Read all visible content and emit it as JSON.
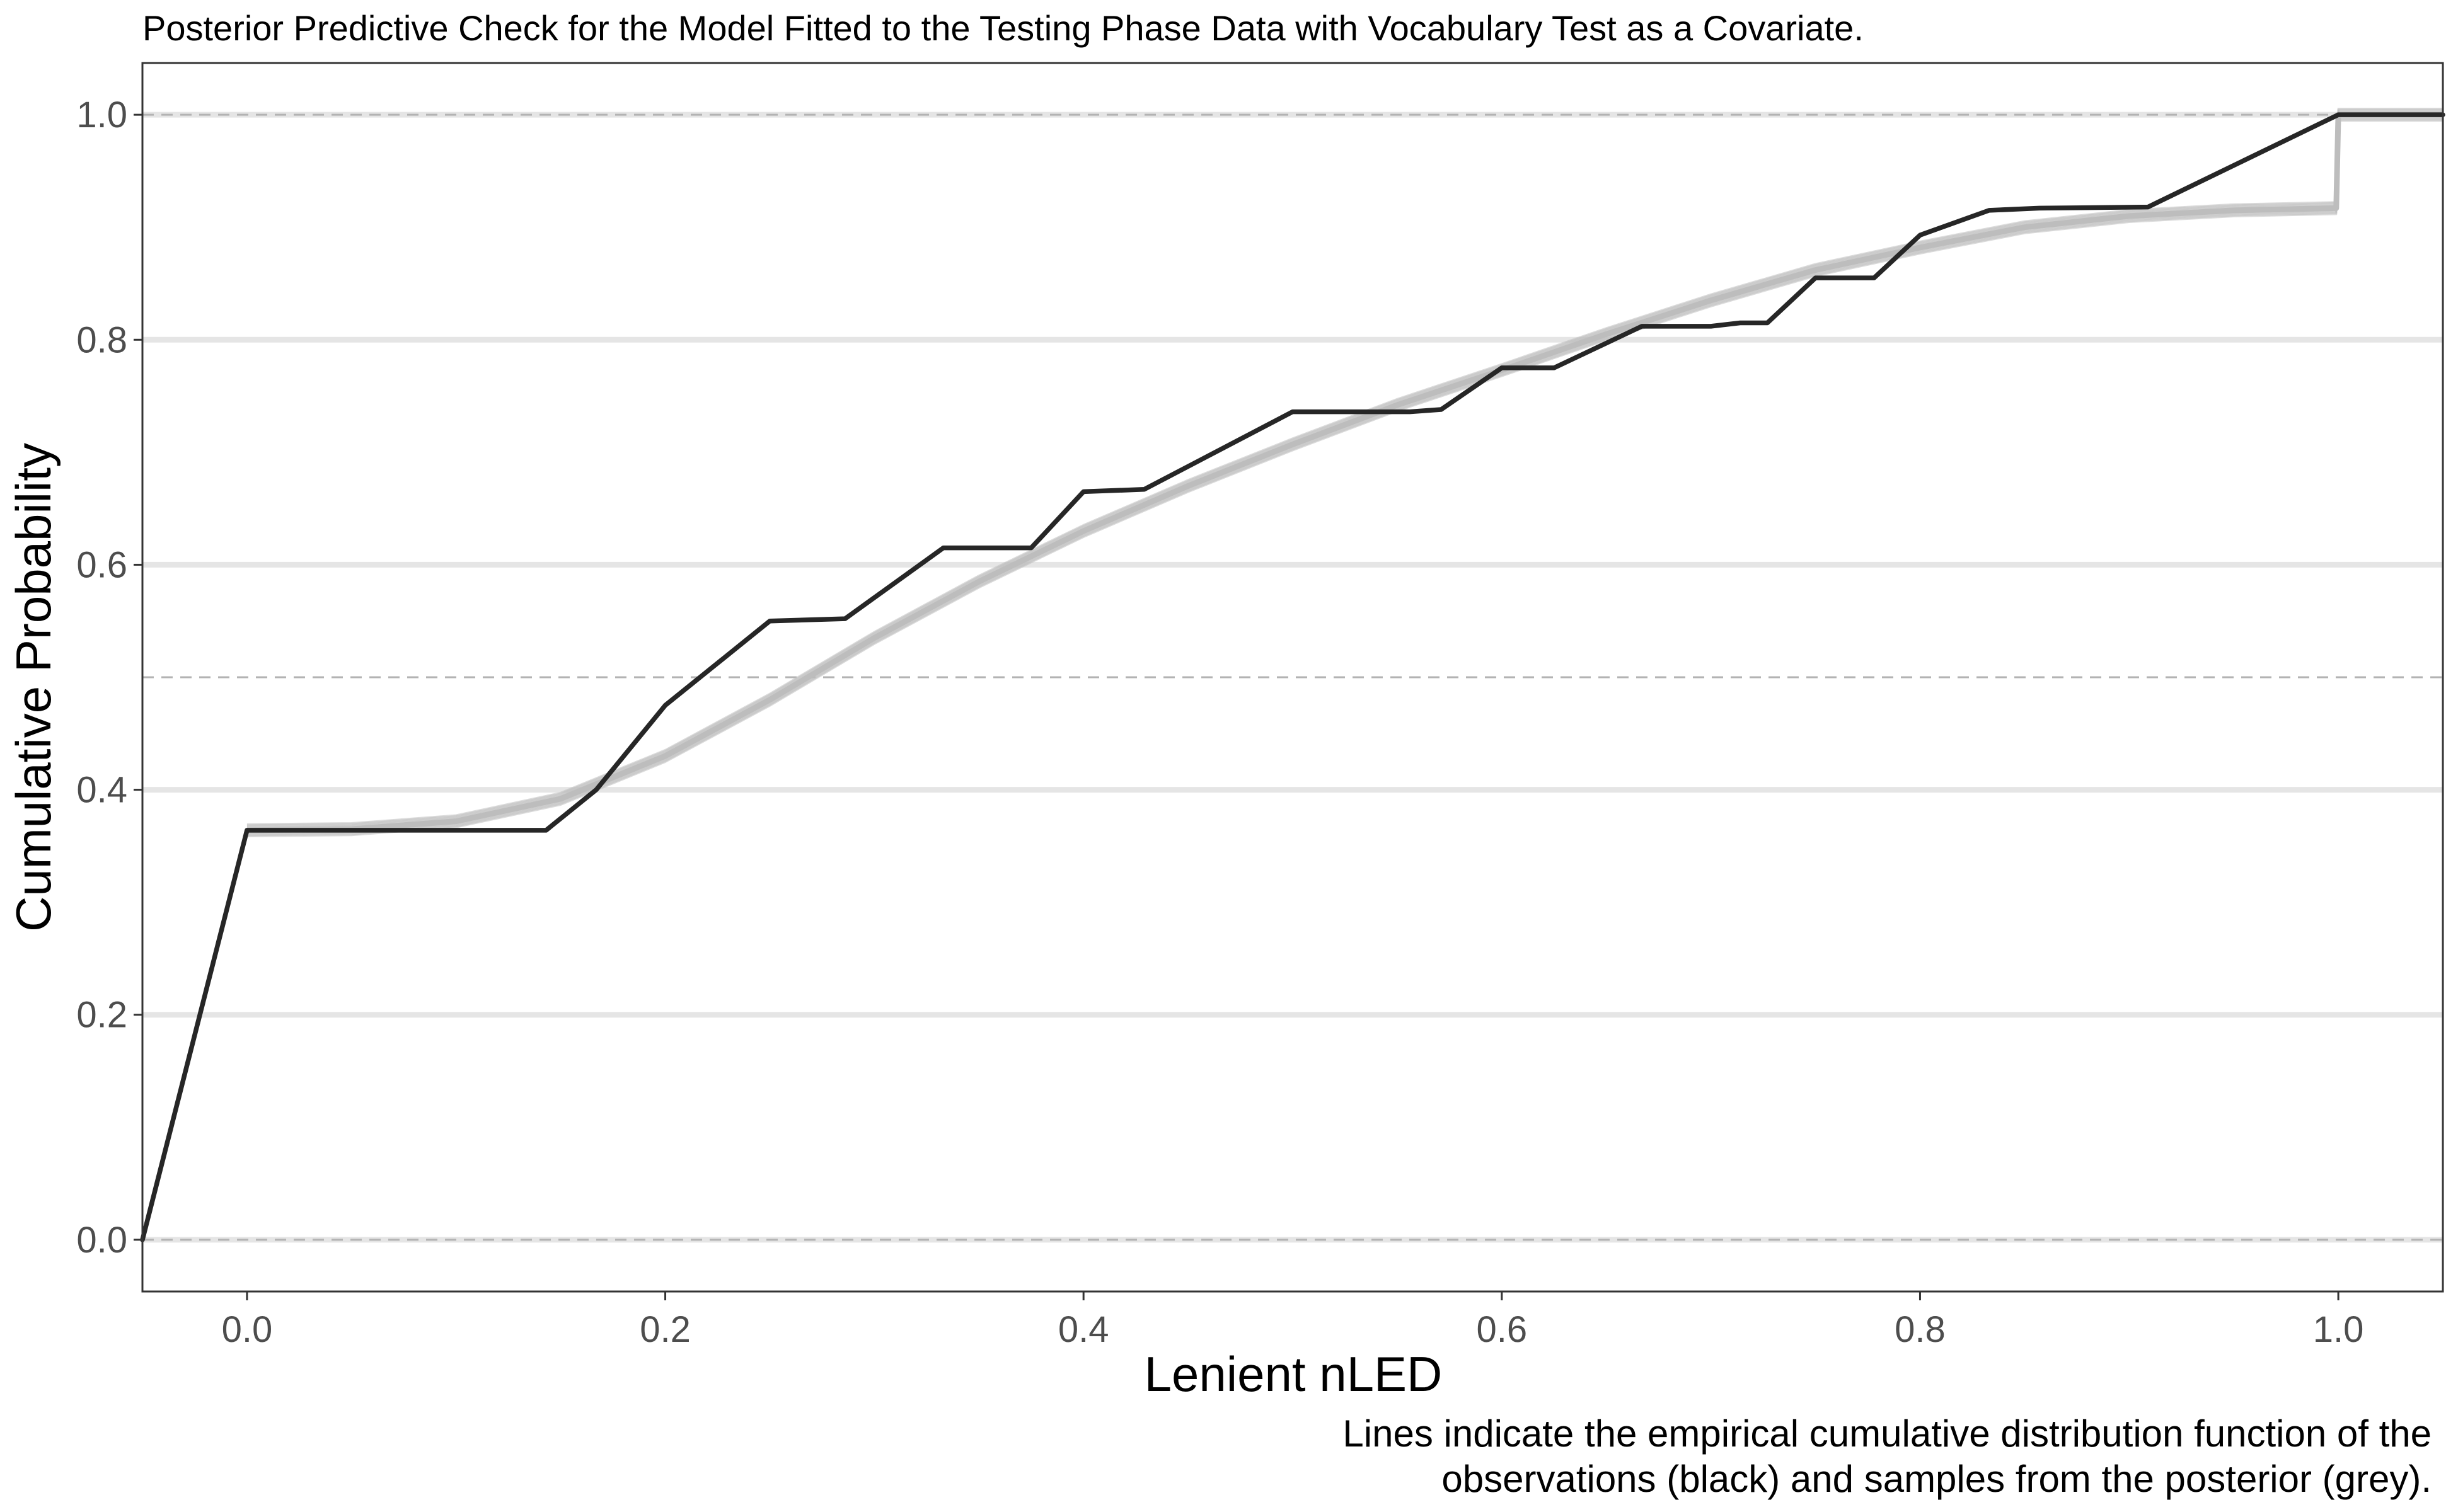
{
  "chart_data": {
    "type": "line",
    "title": "Posterior Predictive Check for the Model Fitted to the Testing Phase Data with Vocabulary Test as a Covariate.",
    "xlabel": "Lenient nLED",
    "ylabel": "Cumulative Probability",
    "caption": [
      "Lines indicate the empirical cumulative distribution function of the",
      "observations (black) and samples from the posterior (grey)."
    ],
    "xlim": [
      -0.05,
      1.05
    ],
    "ylim": [
      -0.046,
      1.046
    ],
    "x_ticks": [
      0.0,
      0.2,
      0.4,
      0.6,
      0.8,
      1.0
    ],
    "x_tick_labels": [
      "0.0",
      "0.2",
      "0.4",
      "0.6",
      "0.8",
      "1.0"
    ],
    "y_ticks": [
      0.0,
      0.2,
      0.4,
      0.6,
      0.8,
      1.0
    ],
    "y_tick_labels": [
      "0.0",
      "0.2",
      "0.4",
      "0.6",
      "0.8",
      "1.0"
    ],
    "grid": true,
    "reference_lines": [
      0.0,
      0.5,
      1.0
    ],
    "colors": {
      "observed": "#262626",
      "posterior": "#bdbdbd",
      "grid": "#e5e5e5",
      "reference": "#b3b3b3"
    },
    "series": [
      {
        "role": "observed",
        "x": [
          -0.05,
          0.0,
          0.143,
          0.167,
          0.2,
          0.25,
          0.286,
          0.333,
          0.375,
          0.4,
          0.429,
          0.5,
          0.556,
          0.571,
          0.6,
          0.625,
          0.667,
          0.7,
          0.714,
          0.727,
          0.75,
          0.778,
          0.8,
          0.833,
          0.857,
          0.909,
          1.0,
          1.05
        ],
        "y": [
          0.0,
          0.364,
          0.364,
          0.4,
          0.475,
          0.55,
          0.552,
          0.615,
          0.615,
          0.665,
          0.667,
          0.736,
          0.736,
          0.738,
          0.775,
          0.775,
          0.812,
          0.812,
          0.815,
          0.815,
          0.855,
          0.855,
          0.893,
          0.915,
          0.917,
          0.918,
          1.0,
          1.0
        ]
      },
      {
        "role": "posterior",
        "x": [
          0.0,
          0.05,
          0.1,
          0.15,
          0.2,
          0.25,
          0.3,
          0.35,
          0.4,
          0.45,
          0.5,
          0.55,
          0.6,
          0.65,
          0.7,
          0.75,
          0.8,
          0.85,
          0.9,
          0.95,
          0.999,
          1.0,
          1.05
        ],
        "y": [
          0.364,
          0.365,
          0.372,
          0.392,
          0.43,
          0.48,
          0.535,
          0.585,
          0.63,
          0.67,
          0.707,
          0.742,
          0.773,
          0.805,
          0.835,
          0.862,
          0.882,
          0.9,
          0.91,
          0.915,
          0.917,
          1.0,
          1.0
        ]
      }
    ]
  }
}
